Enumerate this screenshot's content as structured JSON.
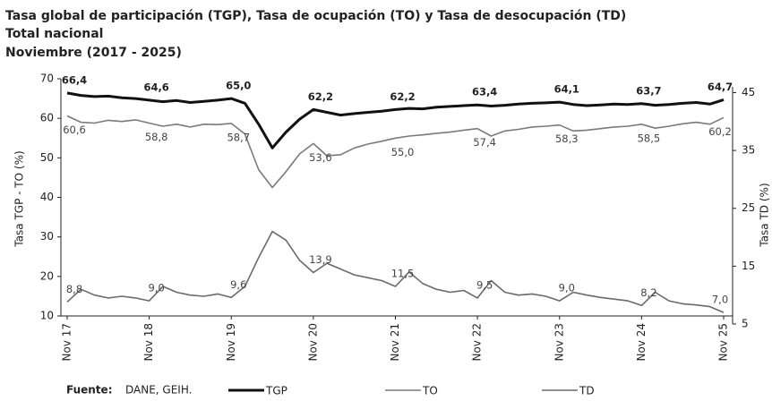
{
  "chart_data": {
    "type": "line",
    "title": "Tasa global de participación (TGP), Tasa de ocupación (TO) y Tasa de desocupación (TD)",
    "subtitle": "Total nacional",
    "subtitle2": "Noviembre (2017 - 2025)",
    "ylabel": "Tasa TGP - TO (%)",
    "y2label": "Tasa TD (%)",
    "source_label": "Fuente:",
    "source": "DANE, GEIH.",
    "categories": [
      "Nov 17",
      null,
      null,
      null,
      null,
      null,
      "Nov 18",
      null,
      null,
      null,
      null,
      null,
      "Nov 19",
      null,
      null,
      null,
      null,
      null,
      "Nov 20",
      null,
      null,
      null,
      null,
      null,
      "Nov 21",
      null,
      null,
      null,
      null,
      null,
      "Nov 22",
      null,
      null,
      null,
      null,
      null,
      "Nov 23",
      null,
      null,
      null,
      null,
      null,
      "Nov 24",
      null,
      null,
      null,
      null,
      null,
      "Nov 25"
    ],
    "ylim": [
      10,
      70
    ],
    "yticks": [
      10,
      20,
      30,
      40,
      50,
      60,
      70
    ],
    "y2lim": [
      5,
      46
    ],
    "y2ticks": [
      5,
      15,
      25,
      35,
      45
    ],
    "series": [
      {
        "name": "TGP",
        "color": "#111111",
        "values": [
          66.4,
          65.8,
          65.5,
          65.6,
          65.2,
          65.0,
          64.6,
          64.2,
          64.5,
          64.0,
          64.3,
          64.6,
          65.0,
          63.8,
          58.5,
          52.5,
          56.5,
          59.8,
          62.2,
          61.5,
          60.8,
          61.2,
          61.5,
          61.8,
          62.2,
          62.5,
          62.4,
          62.8,
          63.0,
          63.2,
          63.4,
          63.1,
          63.3,
          63.6,
          63.8,
          63.9,
          64.1,
          63.5,
          63.2,
          63.4,
          63.6,
          63.5,
          63.7,
          63.3,
          63.5,
          63.8,
          64.0,
          63.6,
          64.7
        ],
        "value_labels": [
          "66,4",
          null,
          null,
          null,
          null,
          null,
          "64,6",
          null,
          null,
          null,
          null,
          null,
          "65,0",
          null,
          null,
          null,
          null,
          null,
          "62,2",
          null,
          null,
          null,
          null,
          null,
          "62,2",
          null,
          null,
          null,
          null,
          null,
          "63,4",
          null,
          null,
          null,
          null,
          null,
          "64,1",
          null,
          null,
          null,
          null,
          null,
          "63,7",
          null,
          null,
          null,
          null,
          null,
          "64,7"
        ]
      },
      {
        "name": "TO",
        "color": "#7a7a7a",
        "values": [
          60.6,
          59.0,
          58.8,
          59.5,
          59.2,
          59.6,
          58.8,
          58.0,
          58.5,
          57.8,
          58.5,
          58.4,
          58.7,
          56.0,
          47.0,
          42.5,
          46.5,
          51.0,
          53.6,
          50.5,
          50.8,
          52.5,
          53.5,
          54.2,
          55.0,
          55.5,
          55.8,
          56.2,
          56.5,
          57.0,
          57.4,
          55.5,
          56.8,
          57.2,
          57.8,
          58.0,
          58.3,
          56.8,
          57.0,
          57.4,
          57.8,
          58.0,
          58.5,
          57.5,
          58.0,
          58.6,
          59.0,
          58.5,
          60.2
        ],
        "value_labels": [
          "60,6",
          null,
          null,
          null,
          null,
          null,
          "58,8",
          null,
          null,
          null,
          null,
          null,
          "58,7",
          null,
          null,
          null,
          null,
          null,
          "53,6",
          null,
          null,
          null,
          null,
          null,
          "55,0",
          null,
          null,
          null,
          null,
          null,
          "57,4",
          null,
          null,
          null,
          null,
          null,
          "58,3",
          null,
          null,
          null,
          null,
          null,
          "58,5",
          null,
          null,
          null,
          null,
          null,
          "60,2"
        ]
      },
      {
        "name": "TD",
        "color": "#6a6a6a",
        "axis": "y2",
        "values": [
          8.8,
          11.0,
          10.0,
          9.5,
          9.8,
          9.5,
          9.0,
          11.5,
          10.5,
          10.0,
          9.8,
          10.2,
          9.6,
          11.5,
          16.5,
          21.0,
          19.5,
          16.0,
          13.9,
          15.5,
          14.5,
          13.5,
          13.0,
          12.5,
          11.5,
          14.0,
          12.0,
          11.0,
          10.5,
          10.8,
          9.5,
          12.5,
          10.5,
          10.0,
          10.2,
          9.8,
          9.0,
          10.5,
          10.0,
          9.6,
          9.3,
          9.0,
          8.2,
          10.5,
          9.0,
          8.5,
          8.3,
          8.0,
          7.0
        ],
        "value_labels": [
          "8,8",
          null,
          null,
          null,
          null,
          null,
          "9,0",
          null,
          null,
          null,
          null,
          null,
          "9,6",
          null,
          null,
          null,
          null,
          null,
          "13,9",
          null,
          null,
          null,
          null,
          null,
          "11,5",
          null,
          null,
          null,
          null,
          null,
          "9,5",
          null,
          null,
          null,
          null,
          null,
          "9,0",
          null,
          null,
          null,
          null,
          null,
          "8,2",
          null,
          null,
          null,
          null,
          null,
          "7,0"
        ]
      }
    ]
  }
}
